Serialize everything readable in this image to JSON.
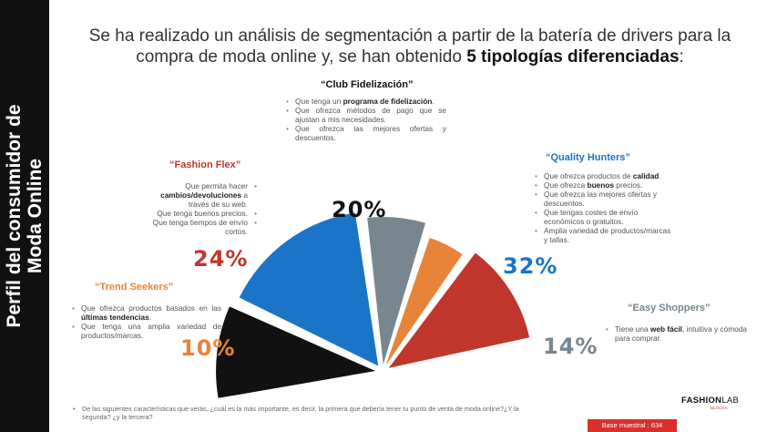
{
  "sidebar": {
    "title_line1": "Perfil del consumidor de",
    "title_line2": "Moda Online"
  },
  "headline": {
    "line1": "Se ha realizado un análisis de segmentación a partir de la batería de drivers para la",
    "line2_pre": "compra de moda online y, se han obtenido ",
    "line2_bold": "5 tipologías diferenciadas",
    "line2_post": ":"
  },
  "colors": {
    "club": "#111111",
    "quality": "#1a75c9",
    "easy": "#78868f",
    "trend": "#e8833a",
    "fashion": "#c0362c"
  },
  "chart_data": {
    "type": "pie",
    "series": [
      {
        "values": [
          20,
          32,
          14,
          10,
          24
        ]
      }
    ],
    "categories": [
      "Club Fidelización",
      "Quality Hunters",
      "Easy Shoppers",
      "Trend Seekers",
      "Fashion Flex"
    ]
  },
  "segments": {
    "club": {
      "title": "“Club Fidelización”",
      "pct": "20%",
      "bullets": [
        [
          "Que tenga un ",
          "programa de fidelización",
          "."
        ],
        [
          "Que ofrezca métodos de pago que se ajustan a mis necesidades.",
          "",
          ""
        ],
        [
          "Que ofrezca las mejores ofertas y descuentos.",
          "",
          ""
        ]
      ]
    },
    "quality": {
      "title": "“Quality Hunters”",
      "pct": "32%",
      "bullets": [
        [
          "Que ofrezca productos de ",
          "calidad",
          "."
        ],
        [
          "Que ofrezca ",
          "buenos",
          " precios."
        ],
        [
          "Que ofrezca las mejores ofertas y descuentos.",
          "",
          ""
        ],
        [
          "Que tengas costes de envío económicos o gratuitos.",
          "",
          ""
        ],
        [
          "Amplia variedad de productos/marcas y tallas.",
          "",
          ""
        ]
      ]
    },
    "easy": {
      "title": "“Easy Shoppers”",
      "pct": "14%",
      "bullets": [
        [
          "Tiene una ",
          "web fácil",
          ", intuitiva y cómoda para comprar."
        ]
      ]
    },
    "trend": {
      "title": "“Trend Seekers”",
      "pct": "10%",
      "bullets": [
        [
          "Que ofrezca productos basados en las ",
          "últimas tendencias",
          "."
        ],
        [
          "Que tenga una amplia variedad de productos/marcas.",
          "",
          ""
        ]
      ]
    },
    "fashion": {
      "title": "“Fashion Flex”",
      "pct": "24%",
      "bullets": [
        [
          "Que permita hacer ",
          "cambios/devoluciones",
          " a través de su web."
        ],
        [
          "Que tenga buenos precios.",
          "",
          ""
        ],
        [
          "Que tenga tiempos de envío cortos.",
          "",
          ""
        ]
      ]
    }
  },
  "footnote": "De las siguientes características que verás, ¿cuál es la más importante, es decir, la primera que debería tener tu punto de venta de moda online?¿Y la segunda? ¿y la tercera?",
  "brand": {
    "name_bold": "FASHION",
    "name_light": "LAB",
    "sub": "BLOCGA"
  },
  "sample": "Base muestral : 634"
}
